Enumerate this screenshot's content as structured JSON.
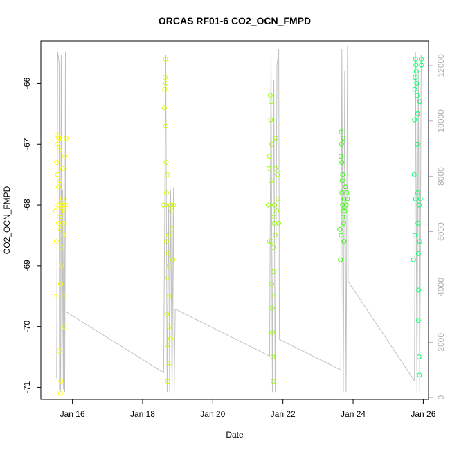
{
  "chart_data": {
    "type": "scatter",
    "title": "ORCAS RF01-6 CO2_OCN_FMPD",
    "xlabel": "Date",
    "ylabel": "CO2_OCN_FMPD",
    "x_unit": "days_in_january_2016",
    "xlim": [
      15.1,
      26.15
    ],
    "ylim": [
      -71.2,
      -65.3
    ],
    "y2lim": [
      -70,
      12900
    ],
    "x_ticks": [
      {
        "value": 16,
        "label": "Jan 16"
      },
      {
        "value": 18,
        "label": "Jan 18"
      },
      {
        "value": 20,
        "label": "Jan 20"
      },
      {
        "value": 22,
        "label": "Jan 22"
      },
      {
        "value": 24,
        "label": "Jan 24"
      },
      {
        "value": 26,
        "label": "Jan 26"
      }
    ],
    "y_ticks": [
      {
        "value": -66,
        "label": "-66"
      },
      {
        "value": -67,
        "label": "-67"
      },
      {
        "value": -68,
        "label": "-68"
      },
      {
        "value": -69,
        "label": "-69"
      },
      {
        "value": -70,
        "label": "-70"
      },
      {
        "value": -71,
        "label": "-71"
      }
    ],
    "y2_ticks": [
      {
        "value": 0,
        "label": "0"
      },
      {
        "value": 2000,
        "label": "2000"
      },
      {
        "value": 4000,
        "label": "4000"
      },
      {
        "value": 6000,
        "label": "6000"
      },
      {
        "value": 8000,
        "label": "8000"
      },
      {
        "value": 10000,
        "label": "10000"
      },
      {
        "value": 12000,
        "label": "12000"
      }
    ],
    "altitude_color": "#c0c0c0",
    "altitude_trace": [
      [
        15.55,
        700
      ],
      [
        15.58,
        12500
      ],
      [
        15.62,
        12100
      ],
      [
        15.63,
        300
      ],
      [
        15.66,
        200
      ],
      [
        15.68,
        12400
      ],
      [
        15.7,
        400
      ],
      [
        15.72,
        7500
      ],
      [
        15.74,
        300
      ],
      [
        15.76,
        7800
      ],
      [
        15.78,
        200
      ],
      [
        15.8,
        12500
      ],
      [
        15.82,
        3100
      ],
      [
        18.6,
        900
      ],
      [
        18.66,
        12400
      ],
      [
        18.7,
        200
      ],
      [
        18.74,
        7000
      ],
      [
        18.77,
        200
      ],
      [
        18.8,
        7500
      ],
      [
        18.84,
        200
      ],
      [
        18.88,
        7600
      ],
      [
        18.9,
        200
      ],
      [
        18.93,
        3200
      ],
      [
        21.62,
        1500
      ],
      [
        21.66,
        12500
      ],
      [
        21.7,
        200
      ],
      [
        21.74,
        11500
      ],
      [
        21.78,
        200
      ],
      [
        21.83,
        12000
      ],
      [
        21.88,
        12600
      ],
      [
        21.9,
        2100
      ],
      [
        23.65,
        1000
      ],
      [
        23.68,
        12600
      ],
      [
        23.72,
        200
      ],
      [
        23.76,
        11800
      ],
      [
        23.8,
        200
      ],
      [
        23.84,
        12700
      ],
      [
        23.86,
        4200
      ],
      [
        25.75,
        600
      ],
      [
        25.78,
        12500
      ],
      [
        25.82,
        200
      ],
      [
        25.86,
        11800
      ],
      [
        25.9,
        200
      ],
      [
        25.94,
        12400
      ]
    ],
    "series": [
      {
        "color": "#ffff00",
        "points": [
          [
            15.5,
            -69.5
          ],
          [
            15.52,
            -68.1
          ],
          [
            15.54,
            -68.6
          ],
          [
            15.55,
            -67.3
          ],
          [
            15.56,
            -66.85
          ],
          [
            15.57,
            -67.0
          ],
          [
            15.58,
            -67.5
          ],
          [
            15.59,
            -68.0
          ],
          [
            15.6,
            -68.3
          ],
          [
            15.61,
            -66.9
          ],
          [
            15.62,
            -67.1
          ],
          [
            15.63,
            -68.2
          ],
          [
            15.64,
            -67.6
          ],
          [
            15.65,
            -68.4
          ],
          [
            15.66,
            -71.1
          ],
          [
            15.67,
            -70.9
          ],
          [
            15.68,
            -68.0
          ],
          [
            15.69,
            -68.1
          ],
          [
            15.7,
            -68.2
          ],
          [
            15.71,
            -68.0
          ],
          [
            15.72,
            -67.9
          ],
          [
            15.73,
            -68.3
          ],
          [
            15.74,
            -68.5
          ],
          [
            15.75,
            -69.5
          ],
          [
            15.76,
            -70.0
          ],
          [
            15.77,
            -68.1
          ],
          [
            15.78,
            -67.2
          ],
          [
            15.8,
            -68.0
          ],
          [
            15.82,
            -66.9
          ],
          [
            15.62,
            -70.4
          ],
          [
            15.68,
            -69.0
          ],
          [
            15.7,
            -68.7
          ],
          [
            15.72,
            -67.4
          ],
          [
            15.74,
            -68.0
          ],
          [
            15.6,
            -67.7
          ],
          [
            15.66,
            -69.3
          ],
          [
            15.64,
            -66.9
          ]
        ]
      },
      {
        "color": "#ccff00",
        "points": [
          [
            18.6,
            -68.0
          ],
          [
            18.62,
            -66.4
          ],
          [
            18.63,
            -66.1
          ],
          [
            18.64,
            -65.9
          ],
          [
            18.65,
            -65.6
          ],
          [
            18.66,
            -66.7
          ],
          [
            18.67,
            -67.3
          ],
          [
            18.68,
            -68.6
          ],
          [
            18.69,
            -69.8
          ],
          [
            18.7,
            -70.3
          ],
          [
            18.71,
            -70.9
          ],
          [
            18.72,
            -69.2
          ],
          [
            18.73,
            -68.8
          ],
          [
            18.74,
            -68.5
          ],
          [
            18.75,
            -69.5
          ],
          [
            18.76,
            -70.0
          ],
          [
            18.78,
            -70.6
          ],
          [
            18.8,
            -68.0
          ],
          [
            18.82,
            -68.1
          ],
          [
            18.84,
            -68.4
          ],
          [
            18.86,
            -68.9
          ],
          [
            18.64,
            -68.0
          ],
          [
            18.7,
            -67.5
          ],
          [
            18.76,
            -69.0
          ],
          [
            18.8,
            -70.2
          ],
          [
            18.88,
            -68.0
          ],
          [
            18.66,
            -66.0
          ],
          [
            18.68,
            -67.8
          ]
        ]
      },
      {
        "color": "#99ff00",
        "points": [
          [
            21.58,
            -68.0
          ],
          [
            21.6,
            -67.4
          ],
          [
            21.62,
            -67.2
          ],
          [
            21.64,
            -66.2
          ],
          [
            21.65,
            -66.6
          ],
          [
            21.66,
            -67.6
          ],
          [
            21.67,
            -68.6
          ],
          [
            21.68,
            -69.3
          ],
          [
            21.69,
            -69.7
          ],
          [
            21.7,
            -70.1
          ],
          [
            21.71,
            -70.5
          ],
          [
            21.72,
            -70.9
          ],
          [
            21.73,
            -69.1
          ],
          [
            21.74,
            -68.2
          ],
          [
            21.75,
            -68.3
          ],
          [
            21.76,
            -68.0
          ],
          [
            21.78,
            -67.4
          ],
          [
            21.8,
            -66.9
          ],
          [
            21.82,
            -68.1
          ],
          [
            21.84,
            -67.5
          ],
          [
            21.86,
            -67.9
          ],
          [
            21.88,
            -68.3
          ],
          [
            21.62,
            -68.6
          ],
          [
            21.68,
            -67.0
          ],
          [
            21.74,
            -69.5
          ],
          [
            21.78,
            -68.5
          ],
          [
            21.66,
            -66.3
          ],
          [
            21.72,
            -68.7
          ]
        ]
      },
      {
        "color": "#33ff00",
        "points": [
          [
            23.62,
            -68.4
          ],
          [
            23.64,
            -68.9
          ],
          [
            23.65,
            -67.2
          ],
          [
            23.66,
            -66.8
          ],
          [
            23.67,
            -67.0
          ],
          [
            23.68,
            -67.3
          ],
          [
            23.69,
            -67.6
          ],
          [
            23.7,
            -68.0
          ],
          [
            23.71,
            -68.2
          ],
          [
            23.72,
            -68.1
          ],
          [
            23.73,
            -68.3
          ],
          [
            23.74,
            -67.9
          ],
          [
            23.76,
            -68.1
          ],
          [
            23.78,
            -67.7
          ],
          [
            23.8,
            -68.0
          ],
          [
            23.82,
            -67.8
          ],
          [
            23.84,
            -67.9
          ],
          [
            23.66,
            -68.5
          ],
          [
            23.7,
            -67.5
          ],
          [
            23.74,
            -68.6
          ],
          [
            23.68,
            -67.8
          ],
          [
            23.72,
            -66.9
          ]
        ]
      },
      {
        "color": "#00ff66",
        "points": [
          [
            25.72,
            -68.9
          ],
          [
            25.74,
            -67.5
          ],
          [
            25.75,
            -66.6
          ],
          [
            25.76,
            -66.1
          ],
          [
            25.77,
            -65.9
          ],
          [
            25.78,
            -65.6
          ],
          [
            25.79,
            -65.7
          ],
          [
            25.8,
            -65.8
          ],
          [
            25.81,
            -66.0
          ],
          [
            25.82,
            -66.2
          ],
          [
            25.83,
            -67.0
          ],
          [
            25.84,
            -67.8
          ],
          [
            25.85,
            -68.3
          ],
          [
            25.86,
            -68.8
          ],
          [
            25.87,
            -69.4
          ],
          [
            25.88,
            -70.5
          ],
          [
            25.89,
            -70.8
          ],
          [
            25.9,
            -68.6
          ],
          [
            25.92,
            -67.9
          ],
          [
            25.94,
            -65.6
          ],
          [
            25.95,
            -65.7
          ],
          [
            25.78,
            -67.9
          ],
          [
            25.84,
            -66.5
          ],
          [
            25.88,
            -68.0
          ],
          [
            25.76,
            -68.5
          ],
          [
            25.86,
            -69.9
          ],
          [
            25.9,
            -66.3
          ]
        ]
      }
    ]
  }
}
